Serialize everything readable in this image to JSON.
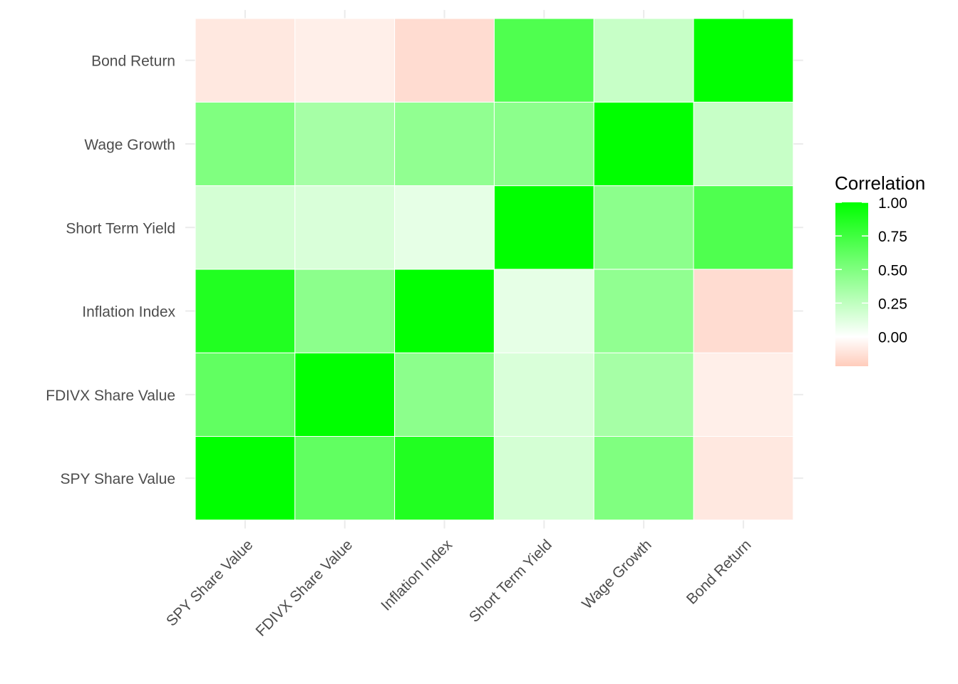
{
  "chart_data": {
    "type": "heatmap",
    "x_categories": [
      "SPY Share Value",
      "FDIVX Share Value",
      "Inflation Index",
      "Short Term Yield",
      "Wage Growth",
      "Bond Return"
    ],
    "y_categories": [
      "SPY Share Value",
      "FDIVX Share Value",
      "Inflation Index",
      "Short Term Yield",
      "Wage Growth",
      "Bond Return"
    ],
    "values": [
      [
        1.0,
        0.62,
        0.87,
        0.17,
        0.5,
        -0.1
      ],
      [
        0.62,
        1.0,
        0.45,
        0.15,
        0.35,
        -0.07
      ],
      [
        0.87,
        0.45,
        1.0,
        0.1,
        0.43,
        -0.15
      ],
      [
        0.17,
        0.15,
        0.1,
        1.0,
        0.45,
        0.69
      ],
      [
        0.5,
        0.35,
        0.43,
        0.45,
        1.0,
        0.22
      ],
      [
        -0.1,
        -0.07,
        -0.15,
        0.69,
        0.22,
        1.0
      ]
    ],
    "legend": {
      "title": "Correlation",
      "ticks": [
        "1.00",
        "0.75",
        "0.50",
        "0.25",
        "0.00"
      ],
      "tick_values": [
        1.0,
        0.75,
        0.5,
        0.25,
        0.0
      ],
      "range": [
        -0.22,
        1.0
      ],
      "placement": "right"
    },
    "colors": {
      "low": "#FFCCBB",
      "mid": "#FFFFFF",
      "high": "#00FF00"
    },
    "grid": true,
    "title": "",
    "xlabel": "",
    "ylabel": ""
  }
}
